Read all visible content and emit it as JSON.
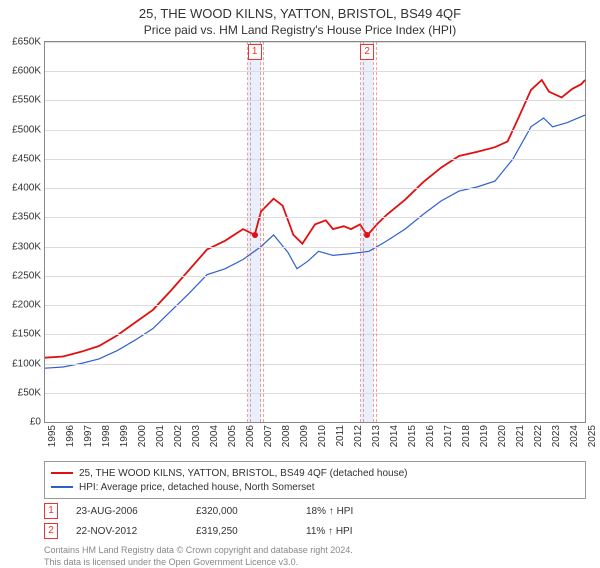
{
  "title": "25, THE WOOD KILNS, YATTON, BRISTOL, BS49 4QF",
  "subtitle": "Price paid vs. HM Land Registry's House Price Index (HPI)",
  "chart": {
    "type": "line",
    "background_color": "#ffffff",
    "grid_color": "#dcdcdc",
    "border_color": "#888888",
    "x_start_year": 1995,
    "x_end_year": 2025,
    "y_min": 0,
    "y_max": 650000,
    "y_tick_step": 50000,
    "y_tick_labels": [
      "£0",
      "£50K",
      "£100K",
      "£150K",
      "£200K",
      "£250K",
      "£300K",
      "£350K",
      "£400K",
      "£450K",
      "£500K",
      "£550K",
      "£600K",
      "£650K"
    ],
    "x_tick_years": [
      1995,
      1996,
      1997,
      1998,
      1999,
      2000,
      2001,
      2002,
      2003,
      2004,
      2005,
      2006,
      2007,
      2008,
      2009,
      2010,
      2011,
      2012,
      2013,
      2014,
      2015,
      2016,
      2017,
      2018,
      2019,
      2020,
      2021,
      2022,
      2023,
      2024,
      2025
    ],
    "series": [
      {
        "name": "25, THE WOOD KILNS, YATTON, BRISTOL, BS49 4QF (detached house)",
        "color": "#e01010",
        "line_width": 1.8,
        "points": [
          [
            1995.0,
            110000
          ],
          [
            1996.0,
            112000
          ],
          [
            1997.0,
            120000
          ],
          [
            1998.0,
            130000
          ],
          [
            1999.0,
            148000
          ],
          [
            2000.0,
            170000
          ],
          [
            2001.0,
            192000
          ],
          [
            2002.0,
            225000
          ],
          [
            2003.0,
            260000
          ],
          [
            2004.0,
            295000
          ],
          [
            2005.0,
            310000
          ],
          [
            2006.0,
            330000
          ],
          [
            2006.65,
            320000
          ],
          [
            2007.0,
            360000
          ],
          [
            2007.7,
            382000
          ],
          [
            2008.2,
            370000
          ],
          [
            2008.8,
            320000
          ],
          [
            2009.3,
            305000
          ],
          [
            2010.0,
            338000
          ],
          [
            2010.6,
            345000
          ],
          [
            2011.0,
            330000
          ],
          [
            2011.6,
            335000
          ],
          [
            2012.0,
            330000
          ],
          [
            2012.5,
            338000
          ],
          [
            2012.9,
            319250
          ],
          [
            2013.5,
            340000
          ],
          [
            2014.0,
            355000
          ],
          [
            2015.0,
            380000
          ],
          [
            2016.0,
            410000
          ],
          [
            2017.0,
            435000
          ],
          [
            2018.0,
            455000
          ],
          [
            2019.0,
            462000
          ],
          [
            2020.0,
            470000
          ],
          [
            2020.7,
            480000
          ],
          [
            2021.3,
            520000
          ],
          [
            2022.0,
            568000
          ],
          [
            2022.6,
            585000
          ],
          [
            2023.0,
            565000
          ],
          [
            2023.7,
            555000
          ],
          [
            2024.3,
            570000
          ],
          [
            2024.8,
            578000
          ],
          [
            2025.0,
            585000
          ]
        ]
      },
      {
        "name": "HPI: Average price, detached house, North Somerset",
        "color": "#3060d0",
        "line_width": 1.2,
        "points": [
          [
            1995.0,
            92000
          ],
          [
            1996.0,
            94000
          ],
          [
            1997.0,
            100000
          ],
          [
            1998.0,
            108000
          ],
          [
            1999.0,
            122000
          ],
          [
            2000.0,
            140000
          ],
          [
            2001.0,
            160000
          ],
          [
            2002.0,
            190000
          ],
          [
            2003.0,
            220000
          ],
          [
            2004.0,
            252000
          ],
          [
            2005.0,
            262000
          ],
          [
            2006.0,
            278000
          ],
          [
            2007.0,
            300000
          ],
          [
            2007.7,
            320000
          ],
          [
            2008.5,
            290000
          ],
          [
            2009.0,
            262000
          ],
          [
            2009.6,
            275000
          ],
          [
            2010.2,
            292000
          ],
          [
            2011.0,
            285000
          ],
          [
            2012.0,
            288000
          ],
          [
            2013.0,
            292000
          ],
          [
            2014.0,
            310000
          ],
          [
            2015.0,
            330000
          ],
          [
            2016.0,
            355000
          ],
          [
            2017.0,
            378000
          ],
          [
            2018.0,
            395000
          ],
          [
            2019.0,
            402000
          ],
          [
            2020.0,
            412000
          ],
          [
            2021.0,
            450000
          ],
          [
            2022.0,
            505000
          ],
          [
            2022.7,
            520000
          ],
          [
            2023.2,
            505000
          ],
          [
            2024.0,
            512000
          ],
          [
            2025.0,
            525000
          ]
        ]
      }
    ],
    "bands": [
      {
        "x_center": 2006.65,
        "half_width_years": 0.35,
        "color": "#eaf0fb",
        "label": "1"
      },
      {
        "x_center": 2012.9,
        "half_width_years": 0.35,
        "color": "#eaf0fb",
        "label": "2"
      }
    ],
    "sale_markers": [
      {
        "n": "1",
        "x": 2006.65,
        "y": 320000,
        "color": "#e01010"
      },
      {
        "n": "2",
        "x": 2012.9,
        "y": 319250,
        "color": "#e01010"
      }
    ]
  },
  "legend": {
    "rows": [
      {
        "color": "#e01010",
        "label": "25, THE WOOD KILNS, YATTON, BRISTOL, BS49 4QF (detached house)"
      },
      {
        "color": "#3060d0",
        "label": "HPI: Average price, detached house, North Somerset"
      }
    ]
  },
  "sales": [
    {
      "n": "1",
      "date": "23-AUG-2006",
      "price": "£320,000",
      "delta": "18% ↑ HPI"
    },
    {
      "n": "2",
      "date": "22-NOV-2012",
      "price": "£319,250",
      "delta": "11% ↑ HPI"
    }
  ],
  "footer_line1": "Contains HM Land Registry data © Crown copyright and database right 2024.",
  "footer_line2": "This data is licensed under the Open Government Licence v3.0."
}
